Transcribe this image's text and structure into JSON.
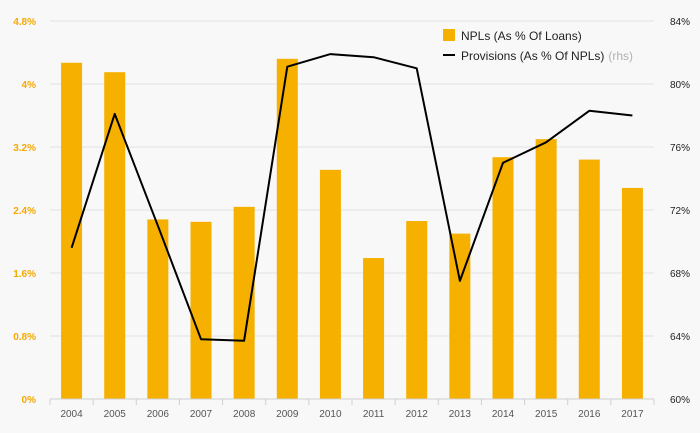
{
  "chart_data": {
    "type": "bar+line",
    "categories": [
      "2004",
      "2005",
      "2006",
      "2007",
      "2008",
      "2009",
      "2010",
      "2011",
      "2012",
      "2013",
      "2014",
      "2015",
      "2016",
      "2017"
    ],
    "series": [
      {
        "name": "NPLs (As % Of Loans)",
        "type": "bar",
        "axis": "left",
        "color": "#f5b000",
        "values": [
          4.27,
          4.15,
          2.28,
          2.25,
          2.44,
          4.32,
          2.91,
          1.79,
          2.26,
          2.1,
          3.07,
          3.3,
          3.04,
          2.68
        ]
      },
      {
        "name": "Provisions (As % Of NPLs)",
        "suffix": "(rhs)",
        "type": "line",
        "axis": "right",
        "color": "#000000",
        "values": [
          69.6,
          78.1,
          71.0,
          63.8,
          63.7,
          81.1,
          81.9,
          81.7,
          81.0,
          67.5,
          75.0,
          76.3,
          78.3,
          78.0
        ]
      }
    ],
    "left_axis": {
      "min": 0,
      "max": 4.8,
      "ticks": [
        "0%",
        "0.8%",
        "1.6%",
        "2.4%",
        "3.2%",
        "4%",
        "4.8%"
      ],
      "color": "#f5a800"
    },
    "right_axis": {
      "min": 60,
      "max": 84,
      "ticks": [
        "60%",
        "64%",
        "68%",
        "72%",
        "76%",
        "80%",
        "84%"
      ],
      "color": "#222222"
    },
    "legend_position": "top-right",
    "grid": true
  }
}
